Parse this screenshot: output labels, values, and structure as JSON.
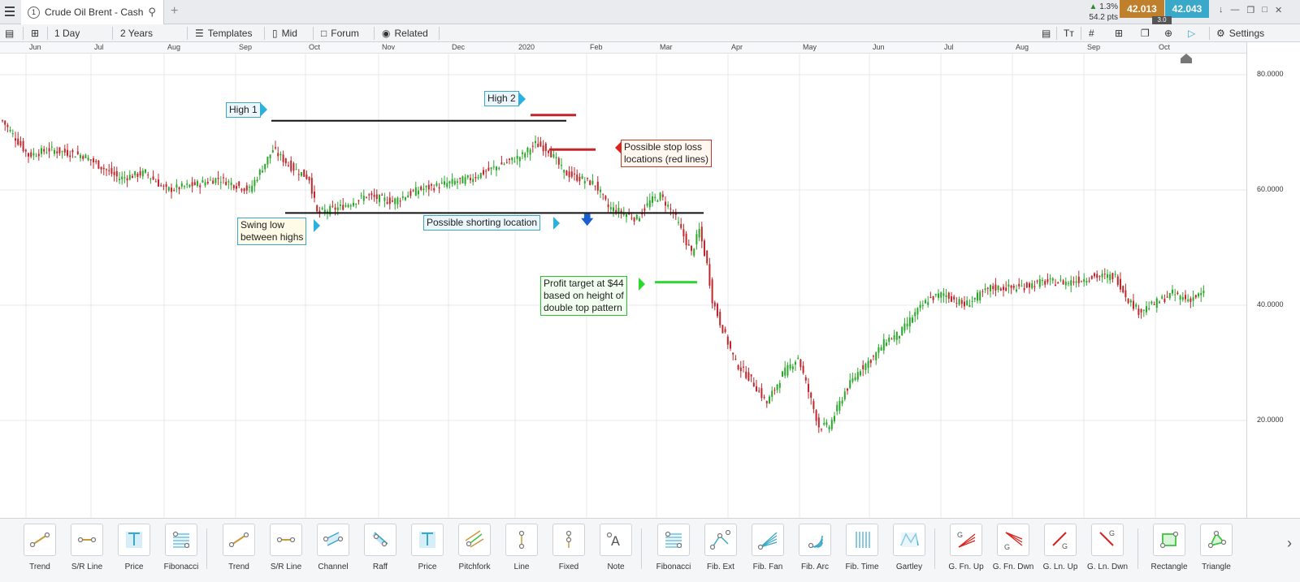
{
  "tab": {
    "number": "1",
    "title": "Crude Oil Brent - Cash",
    "add": "+"
  },
  "quote": {
    "change_pct": "1.3%",
    "change_pts": "54.2 pts",
    "sell": "42.013",
    "buy": "42.043",
    "spread": "3.0",
    "up_color": "#2e8b2e",
    "sell_color": "#c0802b",
    "buy_color": "#3aa8c8"
  },
  "toolbar": {
    "interval": "1 Day",
    "range": "2 Years",
    "templates": "Templates",
    "mid": "Mid",
    "forum": "Forum",
    "related": "Related",
    "settings": "Settings"
  },
  "months": [
    "Jun",
    "Jul",
    "Aug",
    "Sep",
    "Oct",
    "Nov",
    "Dec",
    "2020",
    "Feb",
    "Mar",
    "Apr",
    "May",
    "Jun",
    "Jul",
    "Aug",
    "Sep",
    "Oct"
  ],
  "yaxis": [
    "80.0000",
    "60.0000",
    "40.0000",
    "20.0000"
  ],
  "annotations": {
    "high1": "High 1",
    "high2": "High 2",
    "stop_loss": [
      "Possible stop loss",
      "locations (red lines)"
    ],
    "swing_low": [
      "Swing low",
      "between highs"
    ],
    "shorting": "Possible shorting location",
    "profit": [
      "Profit target at $44",
      "based on height of",
      "double top pattern"
    ]
  },
  "chart_data": {
    "type": "candlestick",
    "instrument": "Crude Oil Brent - Cash",
    "ylim": [
      0,
      86
    ],
    "anchors": [
      [
        0,
        72
      ],
      [
        10,
        66
      ],
      [
        18,
        67
      ],
      [
        31,
        66
      ],
      [
        45,
        62
      ],
      [
        55,
        63
      ],
      [
        63,
        60
      ],
      [
        75,
        61
      ],
      [
        83,
        62
      ],
      [
        95,
        60
      ],
      [
        104,
        67
      ],
      [
        111,
        64
      ],
      [
        118,
        62
      ],
      [
        121,
        56
      ],
      [
        130,
        57
      ],
      [
        140,
        59
      ],
      [
        150,
        58
      ],
      [
        160,
        60
      ],
      [
        170,
        61
      ],
      [
        180,
        62
      ],
      [
        190,
        64
      ],
      [
        200,
        66
      ],
      [
        205,
        68
      ],
      [
        210,
        67
      ],
      [
        216,
        63
      ],
      [
        222,
        62
      ],
      [
        228,
        61
      ],
      [
        233,
        57
      ],
      [
        239,
        56
      ],
      [
        244,
        55
      ],
      [
        249,
        58
      ],
      [
        253,
        59
      ],
      [
        258,
        56
      ],
      [
        262,
        52
      ],
      [
        265,
        49
      ],
      [
        268,
        53
      ],
      [
        271,
        47
      ],
      [
        273,
        41
      ],
      [
        276,
        37
      ],
      [
        282,
        30
      ],
      [
        288,
        27
      ],
      [
        294,
        23
      ],
      [
        300,
        28
      ],
      [
        306,
        31
      ],
      [
        310,
        25
      ],
      [
        314,
        19
      ],
      [
        318,
        19
      ],
      [
        324,
        25
      ],
      [
        330,
        29
      ],
      [
        335,
        31
      ],
      [
        340,
        34
      ],
      [
        345,
        35
      ],
      [
        350,
        38
      ],
      [
        356,
        41
      ],
      [
        362,
        42
      ],
      [
        370,
        40
      ],
      [
        380,
        43
      ],
      [
        390,
        43
      ],
      [
        400,
        44
      ],
      [
        410,
        44
      ],
      [
        420,
        45
      ],
      [
        428,
        45
      ],
      [
        433,
        41
      ],
      [
        437,
        39
      ],
      [
        442,
        40
      ],
      [
        450,
        42
      ],
      [
        456,
        41
      ],
      [
        462,
        42
      ]
    ],
    "levels": {
      "double_top_high": 72,
      "swing_low_neckline": 56,
      "profit_target": 44,
      "stop_loss_1": 73,
      "stop_loss_2": 67
    }
  },
  "tools": [
    "Trend",
    "S/R Line",
    "Price",
    "Fibonacci",
    "Trend",
    "S/R Line",
    "Channel",
    "Raff",
    "Price",
    "Pitchfork",
    "Line",
    "Fixed",
    "Note",
    "Fibonacci",
    "Fib. Ext",
    "Fib. Fan",
    "Fib. Arc",
    "Fib. Time",
    "Gartley",
    "G. Fn. Up",
    "G. Fn. Dwn",
    "G. Ln. Up",
    "G. Ln. Dwn",
    "Rectangle",
    "Triangle"
  ]
}
